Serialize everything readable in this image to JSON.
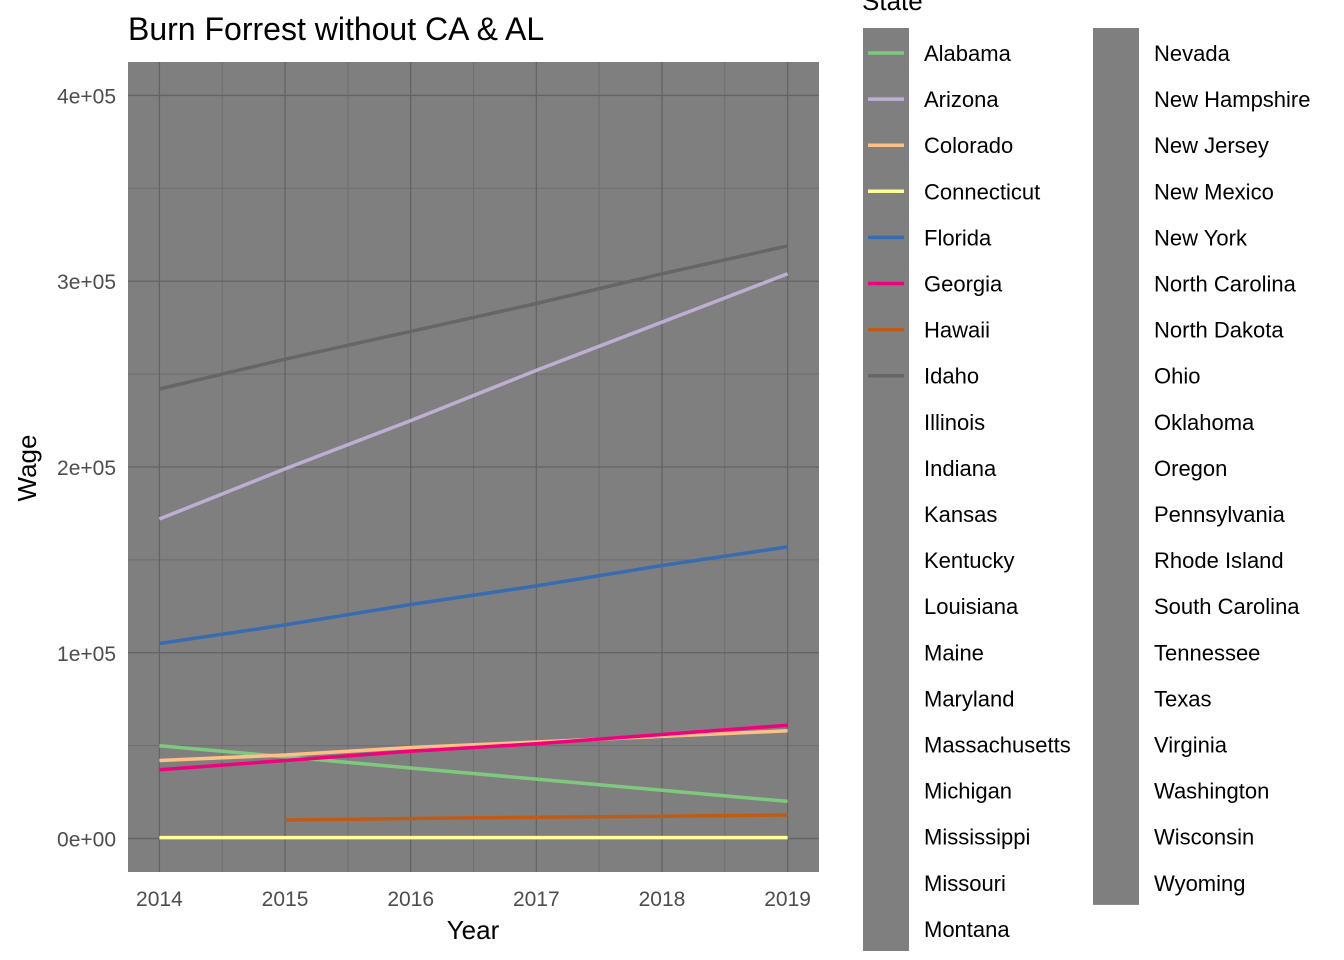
{
  "chart_data": {
    "type": "line",
    "title": "Burn Forrest without CA & AL",
    "xlabel": "Year",
    "ylabel": "Wage",
    "x_ticks": [
      2014,
      2015,
      2016,
      2017,
      2018,
      2019
    ],
    "x_tick_labels": [
      "2014",
      "2015",
      "2016",
      "2017",
      "2018",
      "2019"
    ],
    "xlim": [
      2013.75,
      2019.25
    ],
    "y_ticks": [
      0,
      100000,
      200000,
      300000,
      400000
    ],
    "y_tick_labels": [
      "0e+00",
      "1e+05",
      "2e+05",
      "3e+05",
      "4e+05"
    ],
    "ylim": [
      -18000,
      418000
    ],
    "grid": true,
    "legend_title": "State",
    "legend_placement": "right",
    "panel_color": "#7f7f7f",
    "series": [
      {
        "name": "Alabama",
        "color": "#7fc97f",
        "x": [
          2014,
          2015,
          2016,
          2017,
          2018,
          2019
        ],
        "y": [
          50000,
          44000,
          38000,
          32000,
          26000,
          20000
        ]
      },
      {
        "name": "Arizona",
        "color": "#beaed4",
        "x": [
          2014,
          2015,
          2016,
          2017,
          2018,
          2019
        ],
        "y": [
          172000,
          199000,
          225000,
          252000,
          278000,
          304000
        ]
      },
      {
        "name": "Colorado",
        "color": "#fdc086",
        "x": [
          2014,
          2015,
          2016,
          2017,
          2018,
          2019
        ],
        "y": [
          42000,
          45000,
          49000,
          52000,
          55000,
          58000
        ]
      },
      {
        "name": "Connecticut",
        "color": "#ffff99",
        "x": [
          2014,
          2015,
          2016,
          2017,
          2018,
          2019
        ],
        "y": [
          500,
          500,
          500,
          500,
          500,
          500
        ]
      },
      {
        "name": "Florida",
        "color": "#386cb0",
        "x": [
          2014,
          2015,
          2016,
          2017,
          2018,
          2019
        ],
        "y": [
          105000,
          115000,
          126000,
          136000,
          147000,
          157000
        ]
      },
      {
        "name": "Georgia",
        "color": "#f0027f",
        "x": [
          2014,
          2015,
          2016,
          2017,
          2018,
          2019
        ],
        "y": [
          37000,
          42000,
          47000,
          51000,
          56000,
          61000
        ]
      },
      {
        "name": "Hawaii",
        "color": "#bf5b17",
        "x": [
          2015,
          2016,
          2017,
          2018,
          2019
        ],
        "y": [
          10000,
          10800,
          11500,
          12000,
          12700
        ]
      },
      {
        "name": "Idaho",
        "color": "#666666",
        "x": [
          2014,
          2015,
          2016,
          2017,
          2018,
          2019
        ],
        "y": [
          242000,
          258000,
          273000,
          288000,
          304000,
          319000
        ]
      },
      {
        "name": "Illinois"
      },
      {
        "name": "Indiana"
      },
      {
        "name": "Kansas"
      },
      {
        "name": "Kentucky"
      },
      {
        "name": "Louisiana"
      },
      {
        "name": "Maine"
      },
      {
        "name": "Maryland"
      },
      {
        "name": "Massachusetts"
      },
      {
        "name": "Michigan"
      },
      {
        "name": "Mississippi"
      },
      {
        "name": "Missouri"
      },
      {
        "name": "Montana"
      },
      {
        "name": "Nevada"
      },
      {
        "name": "New Hampshire"
      },
      {
        "name": "New Jersey"
      },
      {
        "name": "New Mexico"
      },
      {
        "name": "New York"
      },
      {
        "name": "North Carolina"
      },
      {
        "name": "North Dakota"
      },
      {
        "name": "Ohio"
      },
      {
        "name": "Oklahoma"
      },
      {
        "name": "Oregon"
      },
      {
        "name": "Pennsylvania"
      },
      {
        "name": "Rhode Island"
      },
      {
        "name": "South Carolina"
      },
      {
        "name": "Tennessee"
      },
      {
        "name": "Texas"
      },
      {
        "name": "Virginia"
      },
      {
        "name": "Washington"
      },
      {
        "name": "Wisconsin"
      },
      {
        "name": "Wyoming"
      }
    ]
  }
}
